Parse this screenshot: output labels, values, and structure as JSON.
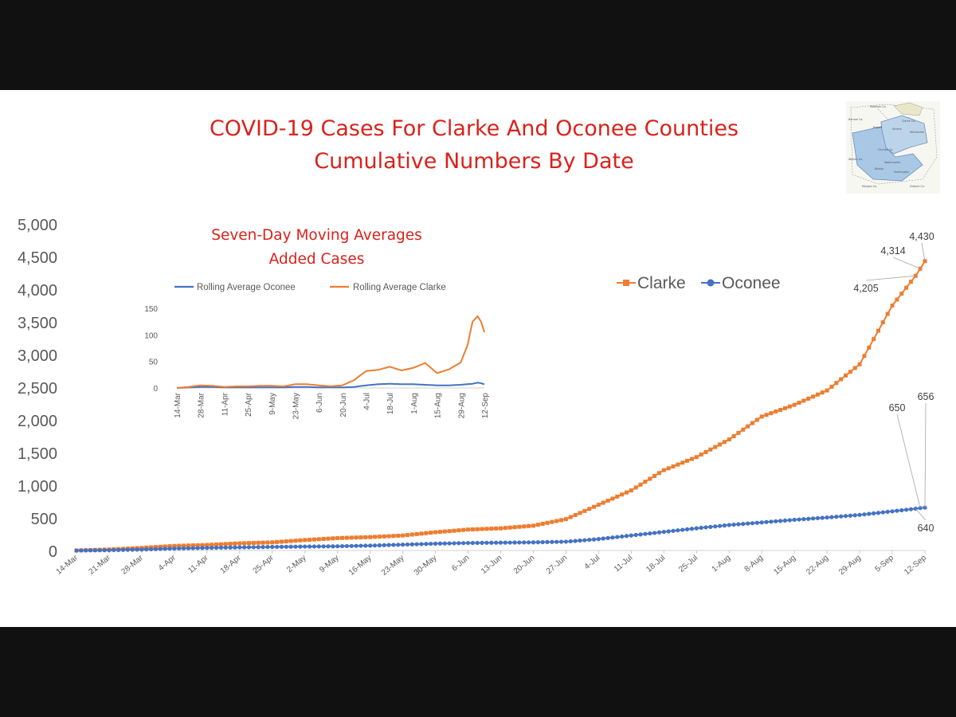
{
  "title_lines": [
    "COVID-19 Cases For Clarke And Oconee Counties",
    "Cumulative Numbers By Date"
  ],
  "colors": {
    "clarke": "#ED7D31",
    "oconee": "#4472C4",
    "title_red": "#D9221C",
    "axis_text": "#595959",
    "frame": "#111111",
    "background": "#FFFFFF"
  },
  "map": {
    "labels": [
      "Madison Co.",
      "Clarke Co.",
      "Oconee Co.",
      "Morgan Co.",
      "Greene Co.",
      "Walton Co.",
      "Barrow Co.",
      "Bogart",
      "Athens",
      "Winterville",
      "Watkinsville",
      "Farmington",
      "Bishop"
    ]
  },
  "chart_data": [
    {
      "type": "line",
      "title": "",
      "xlabel": "",
      "ylabel": "",
      "ylim": [
        0,
        5000
      ],
      "y_ticks": [
        "0",
        "500",
        "1,000",
        "1,500",
        "2,000",
        "2,500",
        "3,000",
        "3,500",
        "4,000",
        "4,500",
        "5,000"
      ],
      "x_ticks": [
        "14-Mar",
        "21-Mar",
        "28-Mar",
        "4-Apr",
        "11-Apr",
        "18-Apr",
        "25-Apr",
        "2-May",
        "9-May",
        "16-May",
        "23-May",
        "30-May",
        "6-Jun",
        "13-Jun",
        "20-Jun",
        "27-Jun",
        "4-Jul",
        "11-Jul",
        "18-Jul",
        "25-Jul",
        "1-Aug",
        "8-Aug",
        "15-Aug",
        "22-Aug",
        "29-Aug",
        "5-Sep",
        "12-Sep"
      ],
      "legend_position": "upper-right",
      "series": [
        {
          "name": "Clarke",
          "points": [
            [
              "14-Mar",
              0
            ],
            [
              "21-Mar",
              15
            ],
            [
              "28-Mar",
              40
            ],
            [
              "4-Apr",
              70
            ],
            [
              "11-Apr",
              85
            ],
            [
              "18-Apr",
              110
            ],
            [
              "25-Apr",
              125
            ],
            [
              "2-May",
              160
            ],
            [
              "9-May",
              190
            ],
            [
              "16-May",
              205
            ],
            [
              "23-May",
              230
            ],
            [
              "30-May",
              280
            ],
            [
              "6-Jun",
              320
            ],
            [
              "13-Jun",
              340
            ],
            [
              "20-Jun",
              380
            ],
            [
              "27-Jun",
              480
            ],
            [
              "4-Jul",
              700
            ],
            [
              "11-Jul",
              920
            ],
            [
              "18-Jul",
              1230
            ],
            [
              "25-Jul",
              1430
            ],
            [
              "1-Aug",
              1700
            ],
            [
              "8-Aug",
              2050
            ],
            [
              "15-Aug",
              2230
            ],
            [
              "22-Aug",
              2450
            ],
            [
              "29-Aug",
              2850
            ],
            [
              "5-Sep",
              3750
            ],
            [
              "10-Sep",
              4205
            ],
            [
              "11-Sep",
              4314
            ],
            [
              "12-Sep",
              4430
            ]
          ]
        },
        {
          "name": "Oconee",
          "points": [
            [
              "14-Mar",
              0
            ],
            [
              "21-Mar",
              5
            ],
            [
              "28-Mar",
              15
            ],
            [
              "4-Apr",
              30
            ],
            [
              "11-Apr",
              40
            ],
            [
              "18-Apr",
              48
            ],
            [
              "25-Apr",
              55
            ],
            [
              "2-May",
              60
            ],
            [
              "9-May",
              65
            ],
            [
              "16-May",
              75
            ],
            [
              "23-May",
              90
            ],
            [
              "30-May",
              105
            ],
            [
              "6-Jun",
              115
            ],
            [
              "13-Jun",
              120
            ],
            [
              "20-Jun",
              125
            ],
            [
              "27-Jun",
              135
            ],
            [
              "4-Jul",
              175
            ],
            [
              "11-Jul",
              230
            ],
            [
              "18-Jul",
              285
            ],
            [
              "25-Jul",
              340
            ],
            [
              "1-Aug",
              390
            ],
            [
              "8-Aug",
              430
            ],
            [
              "15-Aug",
              470
            ],
            [
              "22-Aug",
              505
            ],
            [
              "29-Aug",
              545
            ],
            [
              "5-Sep",
              600
            ],
            [
              "10-Sep",
              640
            ],
            [
              "11-Sep",
              650
            ],
            [
              "12-Sep",
              656
            ]
          ]
        }
      ],
      "annotations": [
        {
          "series": "Clarke",
          "date": "10-Sep",
          "label": "4,205"
        },
        {
          "series": "Clarke",
          "date": "11-Sep",
          "label": "4,314"
        },
        {
          "series": "Clarke",
          "date": "12-Sep",
          "label": "4,430"
        },
        {
          "series": "Oconee",
          "date": "10-Sep",
          "label": "640"
        },
        {
          "series": "Oconee",
          "date": "11-Sep",
          "label": "650"
        },
        {
          "series": "Oconee",
          "date": "12-Sep",
          "label": "656"
        }
      ]
    },
    {
      "type": "line",
      "title_lines": [
        "Seven-Day Moving Averages",
        "Added Cases"
      ],
      "xlabel": "",
      "ylabel": "",
      "ylim": [
        0,
        150
      ],
      "y_ticks": [
        "0",
        "50",
        "100",
        "150"
      ],
      "x_ticks": [
        "14-Mar",
        "28-Mar",
        "11-Apr",
        "25-Apr",
        "9-May",
        "23-May",
        "6-Jun",
        "20-Jun",
        "4-Jul",
        "18-Jul",
        "1-Aug",
        "15-Aug",
        "29-Aug",
        "12-Sep"
      ],
      "legend_position": "top",
      "series": [
        {
          "name": "Rolling Average Oconee",
          "points": [
            [
              "14-Mar",
              0
            ],
            [
              "21-Mar",
              1
            ],
            [
              "28-Mar",
              2
            ],
            [
              "4-Apr",
              2
            ],
            [
              "11-Apr",
              1
            ],
            [
              "18-Apr",
              1
            ],
            [
              "25-Apr",
              1
            ],
            [
              "2-May",
              1
            ],
            [
              "9-May",
              1
            ],
            [
              "16-May",
              1
            ],
            [
              "23-May",
              2
            ],
            [
              "30-May",
              2
            ],
            [
              "6-Jun",
              1
            ],
            [
              "13-Jun",
              1
            ],
            [
              "20-Jun",
              1
            ],
            [
              "27-Jun",
              2
            ],
            [
              "4-Jul",
              5
            ],
            [
              "11-Jul",
              7
            ],
            [
              "18-Jul",
              8
            ],
            [
              "25-Jul",
              7
            ],
            [
              "1-Aug",
              7
            ],
            [
              "8-Aug",
              6
            ],
            [
              "15-Aug",
              5
            ],
            [
              "22-Aug",
              5
            ],
            [
              "29-Aug",
              6
            ],
            [
              "5-Sep",
              8
            ],
            [
              "8-Sep",
              10
            ],
            [
              "10-Sep",
              9
            ],
            [
              "12-Sep",
              7
            ]
          ]
        },
        {
          "name": "Rolling Average Clarke",
          "points": [
            [
              "14-Mar",
              0
            ],
            [
              "21-Mar",
              2
            ],
            [
              "28-Mar",
              5
            ],
            [
              "4-Apr",
              4
            ],
            [
              "11-Apr",
              2
            ],
            [
              "18-Apr",
              3
            ],
            [
              "25-Apr",
              3
            ],
            [
              "2-May",
              4
            ],
            [
              "9-May",
              4
            ],
            [
              "16-May",
              3
            ],
            [
              "23-May",
              7
            ],
            [
              "30-May",
              7
            ],
            [
              "6-Jun",
              5
            ],
            [
              "13-Jun",
              3
            ],
            [
              "20-Jun",
              5
            ],
            [
              "27-Jun",
              15
            ],
            [
              "4-Jul",
              32
            ],
            [
              "11-Jul",
              34
            ],
            [
              "18-Jul",
              40
            ],
            [
              "25-Jul",
              33
            ],
            [
              "1-Aug",
              38
            ],
            [
              "8-Aug",
              47
            ],
            [
              "15-Aug",
              28
            ],
            [
              "22-Aug",
              35
            ],
            [
              "29-Aug",
              48
            ],
            [
              "2-Sep",
              80
            ],
            [
              "5-Sep",
              125
            ],
            [
              "8-Sep",
              135
            ],
            [
              "10-Sep",
              125
            ],
            [
              "12-Sep",
              105
            ]
          ]
        }
      ]
    }
  ]
}
